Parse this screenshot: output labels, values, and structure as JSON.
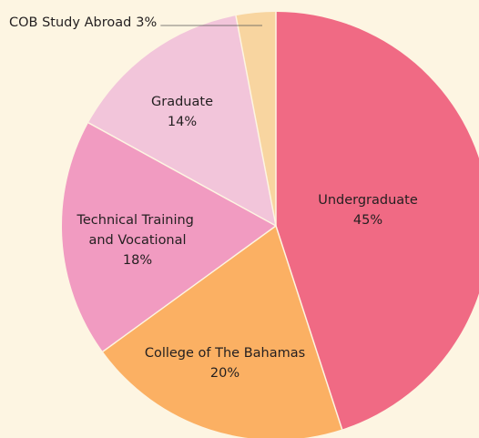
{
  "chart_data": {
    "type": "pie",
    "categories": [
      "Undergraduate",
      "College of The Bahamas",
      "Technical Training and Vocational",
      "Graduate",
      "COB Study Abroad"
    ],
    "values": [
      45,
      20,
      18,
      14,
      3
    ],
    "value_labels": [
      "45%",
      "20%",
      "18%",
      "14%",
      "3%"
    ],
    "colors": [
      "#f06a84",
      "#fbb063",
      "#f19bc1",
      "#f2c5da",
      "#f8d5a0"
    ]
  }
}
